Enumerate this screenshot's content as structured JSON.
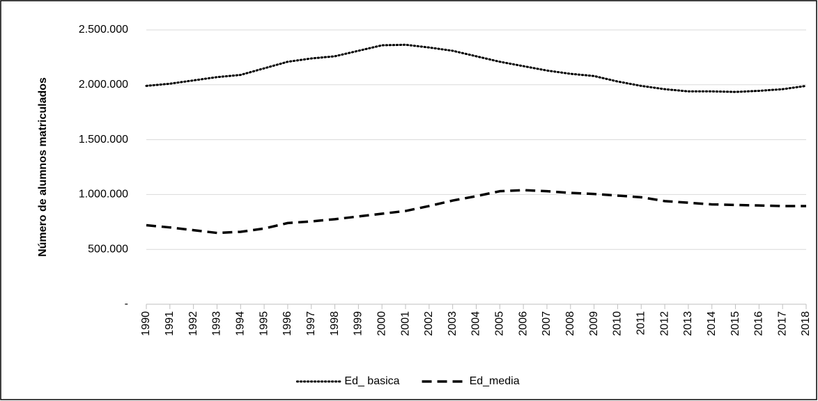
{
  "chart_data": {
    "type": "line",
    "y_label": "Número de alumnos matriculados",
    "categories": [
      "1990",
      "1991",
      "1992",
      "1993",
      "1994",
      "1995",
      "1996",
      "1997",
      "1998",
      "1999",
      "2000",
      "2001",
      "2002",
      "2003",
      "2004",
      "2005",
      "2006",
      "2007",
      "2008",
      "2009",
      "2010",
      "2011",
      "2012",
      "2013",
      "2014",
      "2015",
      "2016",
      "2017",
      "2018"
    ],
    "series": [
      {
        "name": "Ed_ basica",
        "color": "#000000",
        "dash": "dotted",
        "values": [
          1990000,
          2010000,
          2040000,
          2070000,
          2090000,
          2150000,
          2210000,
          2240000,
          2260000,
          2310000,
          2360000,
          2365000,
          2340000,
          2310000,
          2260000,
          2210000,
          2170000,
          2130000,
          2100000,
          2080000,
          2030000,
          1990000,
          1960000,
          1940000,
          1940000,
          1935000,
          1945000,
          1960000,
          1990000
        ]
      },
      {
        "name": "Ed_media",
        "color": "#000000",
        "dash": "dashed",
        "values": [
          720000,
          700000,
          675000,
          650000,
          660000,
          690000,
          740000,
          755000,
          775000,
          800000,
          825000,
          850000,
          895000,
          945000,
          985000,
          1030000,
          1040000,
          1030000,
          1015000,
          1005000,
          990000,
          975000,
          940000,
          925000,
          910000,
          905000,
          900000,
          895000,
          895000
        ]
      }
    ],
    "ylim": [
      0,
      2500000
    ],
    "yticks": [
      {
        "value": 0,
        "label": "-"
      },
      {
        "value": 500000,
        "label": "500.000"
      },
      {
        "value": 1000000,
        "label": "1.000.000"
      },
      {
        "value": 1500000,
        "label": "1.500.000"
      },
      {
        "value": 2000000,
        "label": "2.000.000"
      },
      {
        "value": 2500000,
        "label": "2.500.000"
      }
    ],
    "grid": true,
    "legend": "bottom"
  }
}
